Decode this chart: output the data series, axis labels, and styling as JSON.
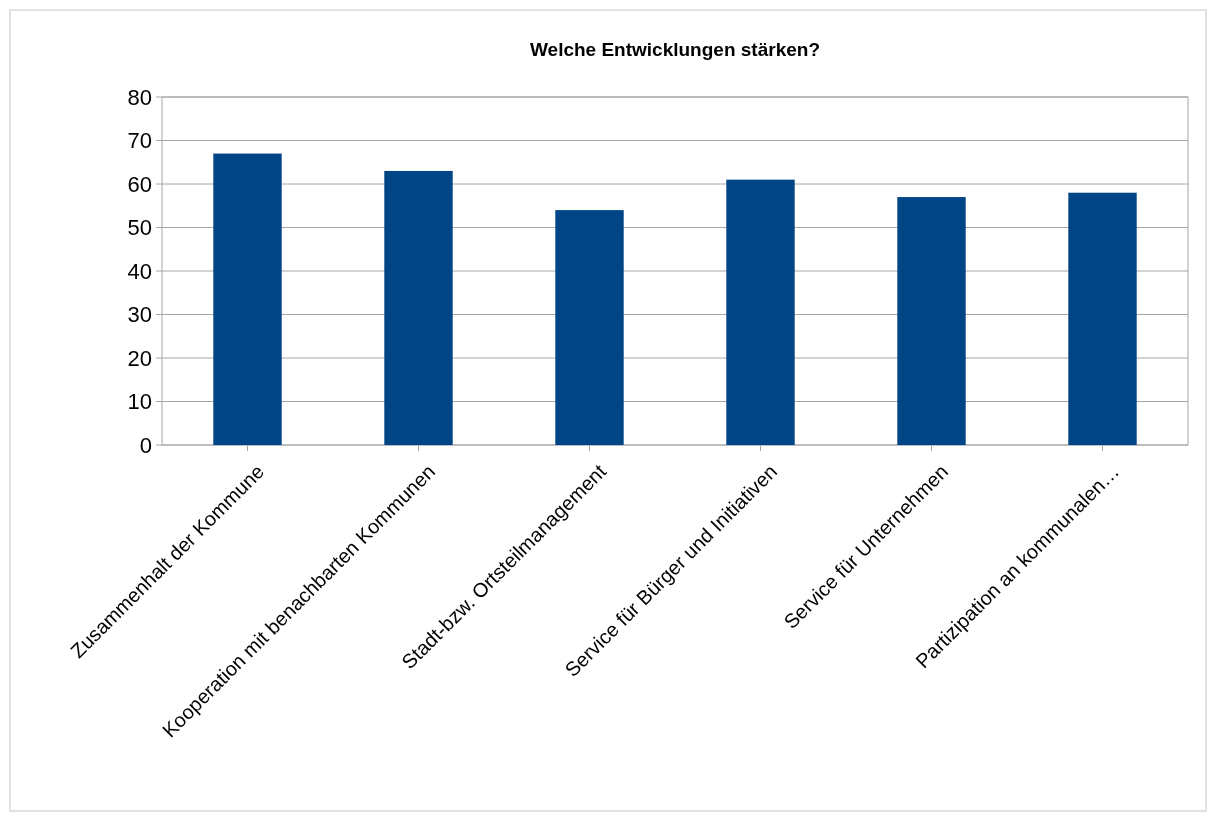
{
  "chart_data": {
    "type": "bar",
    "title": "Welche Entwicklungen stärken?",
    "categories": [
      "Zusammenhalt der Kommune",
      "Kooperation mit benachbarten Kommunen",
      "Stadt-bzw. Ortsteilmanagement",
      "Service für Bürger und Initiativen",
      "Service für Unternehmen",
      "Partizipation an kommunalen…"
    ],
    "values": [
      67,
      63,
      54,
      61,
      57,
      58
    ],
    "color": "#004586",
    "ylim": [
      0,
      80
    ],
    "yticks": [
      0,
      10,
      20,
      30,
      40,
      50,
      60,
      70,
      80
    ],
    "grid": "y"
  }
}
